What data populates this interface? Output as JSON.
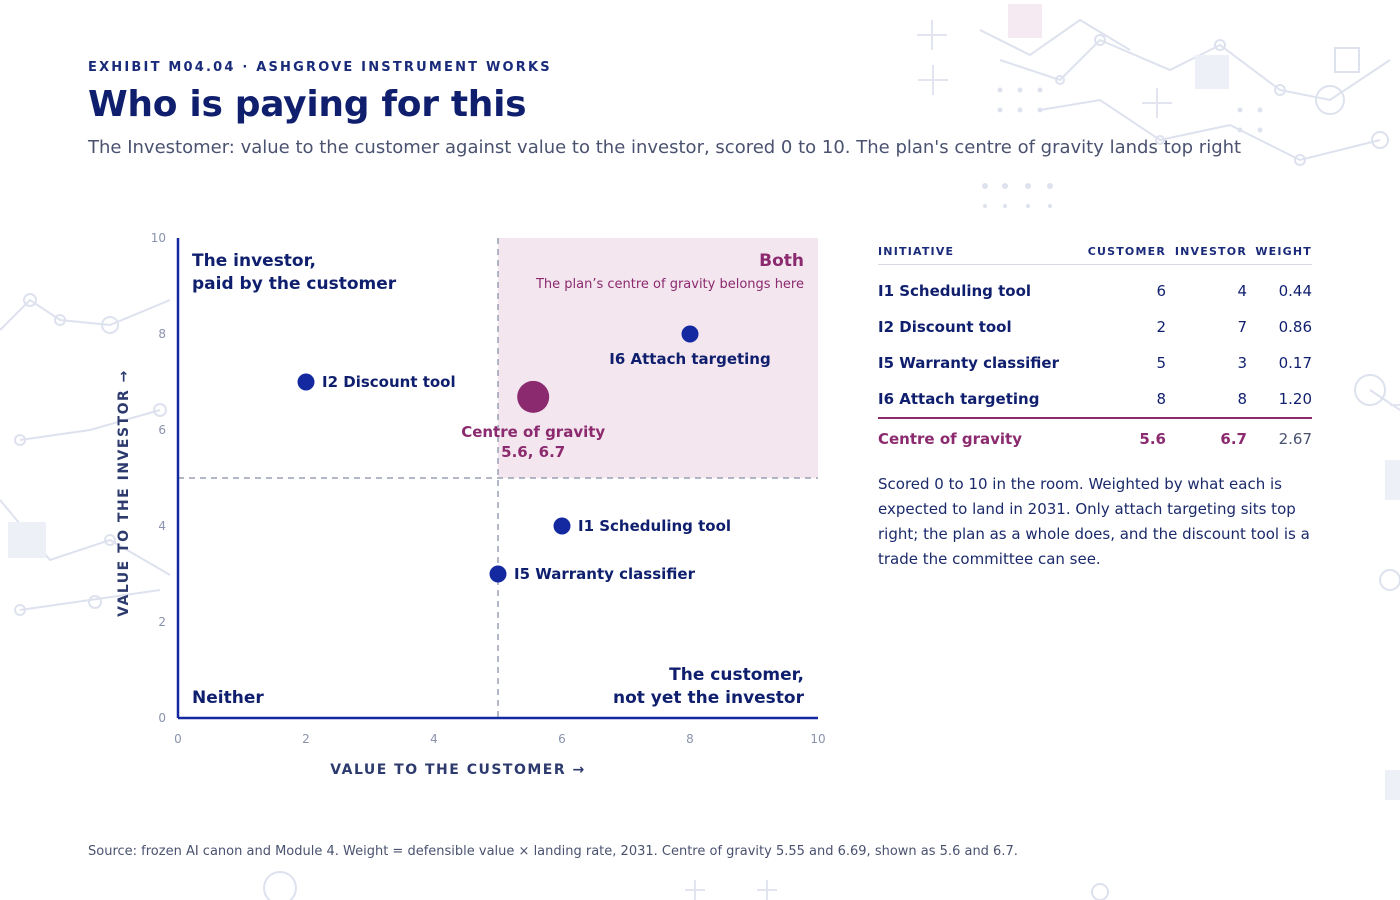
{
  "header": {
    "eyebrow": "EXHIBIT M04.04 · ASHGROVE INSTRUMENT WORKS",
    "title": "Who is paying for this",
    "subtitle": "The Investomer: value to the customer against value to the investor, scored 0 to 10. The plan's centre of gravity lands top right"
  },
  "colors": {
    "navy": "#0f1f6e",
    "point": "#1428a0",
    "accent": "#8b2a6e",
    "quadrant_fill": "#f3e6ef",
    "muted": "#4a5270"
  },
  "chart_data": {
    "type": "scatter",
    "xlabel": "VALUE TO THE CUSTOMER →",
    "ylabel": "VALUE TO THE INVESTOR →",
    "xlim": [
      0,
      10
    ],
    "ylim": [
      0,
      10
    ],
    "xticks": [
      0,
      2,
      4,
      6,
      8,
      10
    ],
    "yticks": [
      0,
      2,
      4,
      6,
      8,
      10
    ],
    "threshold": {
      "x": 5,
      "y": 5
    },
    "quadrants": {
      "top_left": {
        "line1": "The investor,",
        "line2": "paid by the customer"
      },
      "top_right": {
        "title": "Both",
        "subtitle": "The plan’s centre of gravity belongs here"
      },
      "bottom_left": {
        "title": "Neither"
      },
      "bottom_right": {
        "line1": "The customer,",
        "line2": "not yet the investor"
      }
    },
    "points": [
      {
        "label": "I2 Discount tool",
        "x": 2,
        "y": 7,
        "label_pos": "right"
      },
      {
        "label": "I6 Attach targeting",
        "x": 8,
        "y": 8,
        "label_pos": "below"
      },
      {
        "label": "I1 Scheduling tool",
        "x": 6,
        "y": 4,
        "label_pos": "right"
      },
      {
        "label": "I5 Warranty classifier",
        "x": 5,
        "y": 3,
        "label_pos": "right"
      }
    ],
    "centre": {
      "label": "Centre of gravity",
      "value_label": "5.6, 6.7",
      "x": 5.55,
      "y": 6.69
    }
  },
  "table": {
    "headers": [
      "INITIATIVE",
      "CUSTOMER",
      "INVESTOR",
      "WEIGHT"
    ],
    "rows": [
      {
        "name": "I1 Scheduling tool",
        "customer": "6",
        "investor": "4",
        "weight": "0.44"
      },
      {
        "name": "I2 Discount tool",
        "customer": "2",
        "investor": "7",
        "weight": "0.86"
      },
      {
        "name": "I5 Warranty classifier",
        "customer": "5",
        "investor": "3",
        "weight": "0.17"
      },
      {
        "name": "I6 Attach targeting",
        "customer": "8",
        "investor": "8",
        "weight": "1.20"
      }
    ],
    "footer": {
      "name": "Centre of gravity",
      "customer": "5.6",
      "investor": "6.7",
      "weight": "2.67"
    }
  },
  "note": "Scored 0 to 10 in the room. Weighted by what each is expected to land in 2031. Only attach targeting sits top right; the plan as a whole does, and the discount tool is a trade the committee can see.",
  "source": "Source: frozen AI canon and Module 4. Weight = defensible value × landing rate, 2031. Centre of gravity 5.55 and 6.69, shown as 5.6 and 6.7."
}
